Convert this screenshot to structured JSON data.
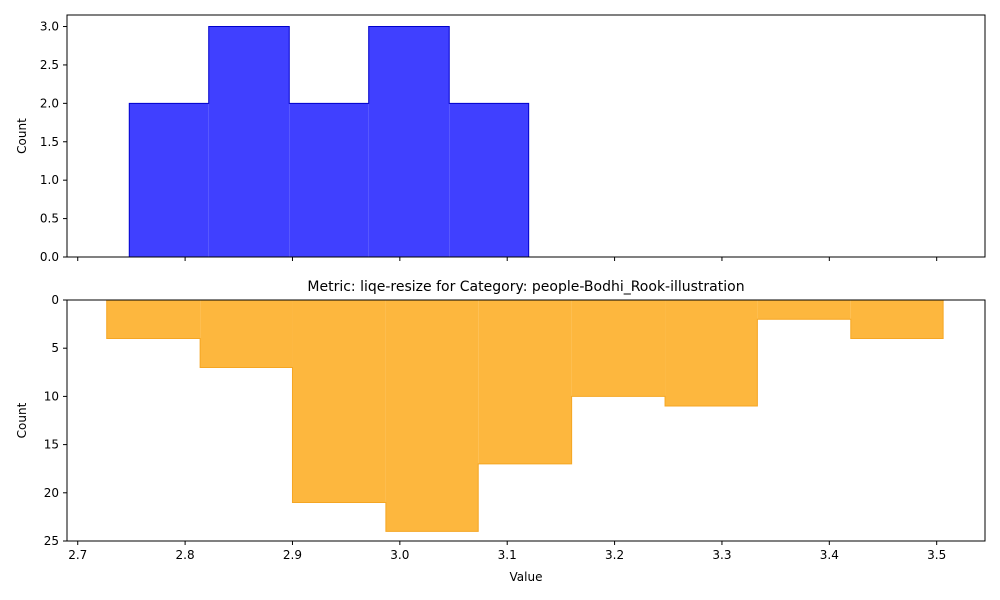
{
  "chart_data": [
    {
      "type": "histogram",
      "title": "",
      "xlabel": "",
      "ylabel": "Count",
      "xlim": [
        2.69,
        3.545
      ],
      "ylim": [
        0,
        3.15
      ],
      "y_inverted": false,
      "x_ticks": [
        "2.7",
        "2.8",
        "2.9",
        "3.0",
        "3.1",
        "3.2",
        "3.3",
        "3.4",
        "3.5"
      ],
      "x_tick_values": [
        2.7,
        2.8,
        2.9,
        3.0,
        3.1,
        3.2,
        3.3,
        3.4,
        3.5
      ],
      "x_tick_labels_visible": false,
      "y_ticks": [
        "0.0",
        "0.5",
        "1.0",
        "1.5",
        "2.0",
        "2.5",
        "3.0"
      ],
      "y_tick_values": [
        0,
        0.5,
        1.0,
        1.5,
        2.0,
        2.5,
        3.0
      ],
      "bin_edges": [
        2.748,
        2.822,
        2.897,
        2.971,
        3.046,
        3.12
      ],
      "counts": [
        2,
        3,
        2,
        3,
        2
      ],
      "fill_color": "#4040ff",
      "edge_color": "#0000cc",
      "grid": false
    },
    {
      "type": "histogram",
      "title": "Metric: liqe-resize for Category: people-Bodhi_Rook-illustration",
      "xlabel": "Value",
      "ylabel": "Count",
      "xlim": [
        2.69,
        3.545
      ],
      "ylim": [
        0,
        25
      ],
      "y_inverted": true,
      "x_ticks": [
        "2.7",
        "2.8",
        "2.9",
        "3.0",
        "3.1",
        "3.2",
        "3.3",
        "3.4",
        "3.5"
      ],
      "x_tick_values": [
        2.7,
        2.8,
        2.9,
        3.0,
        3.1,
        3.2,
        3.3,
        3.4,
        3.5
      ],
      "x_tick_labels_visible": true,
      "y_ticks": [
        "0",
        "5",
        "10",
        "15",
        "20",
        "25"
      ],
      "y_tick_values": [
        0,
        5,
        10,
        15,
        20,
        25
      ],
      "bin_edges": [
        2.727,
        2.814,
        2.9,
        2.987,
        3.073,
        3.16,
        3.247,
        3.333,
        3.42,
        3.506
      ],
      "counts": [
        4,
        7,
        21,
        24,
        17,
        10,
        11,
        2,
        4
      ],
      "fill_color": "#fdb73e",
      "edge_color": "#f5a623",
      "grid": false
    }
  ]
}
